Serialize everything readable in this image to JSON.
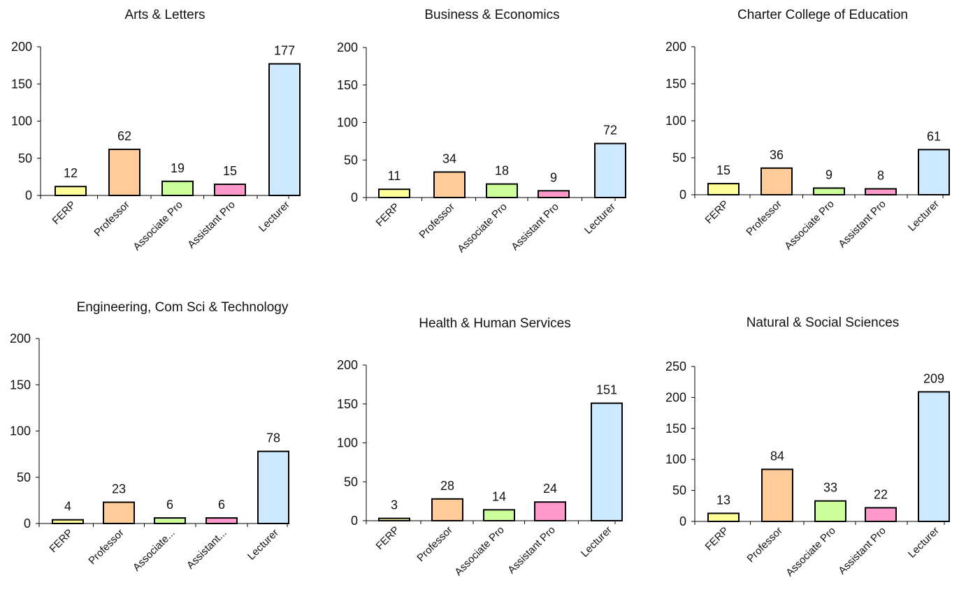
{
  "colors": {
    "FERP": "#ffff99",
    "Professor": "#ffcc99",
    "Associate": "#ccff99",
    "Assistant": "#ff99cc",
    "Lecturer": "#cce9ff",
    "stroke": "#000000"
  },
  "chart_data": [
    {
      "type": "bar",
      "title": "Arts & Letters",
      "categories": [
        "FERP",
        "Professor",
        "Associate Pro",
        "Assistant Pro",
        "Lecturer"
      ],
      "values": [
        12,
        62,
        19,
        15,
        177
      ],
      "ylim": [
        0,
        200
      ],
      "yticks": [
        0,
        50,
        100,
        150,
        200
      ],
      "grid": false,
      "legend": "none"
    },
    {
      "type": "bar",
      "title": "Business & Economics",
      "categories": [
        "FERP",
        "Professor",
        "Associate Pro",
        "Assistant Pro",
        "Lecturer"
      ],
      "values": [
        11,
        34,
        18,
        9,
        72
      ],
      "ylim": [
        0,
        200
      ],
      "yticks": [
        0,
        50,
        100,
        150,
        200
      ],
      "grid": false,
      "legend": "none"
    },
    {
      "type": "bar",
      "title": "Charter College of Education",
      "categories": [
        "FERP",
        "Professor",
        "Associate Pro",
        "Assistant Pro",
        "Lecturer"
      ],
      "values": [
        15,
        36,
        9,
        8,
        61
      ],
      "ylim": [
        0,
        200
      ],
      "yticks": [
        0,
        50,
        100,
        150,
        200
      ],
      "grid": false,
      "legend": "none"
    },
    {
      "type": "bar",
      "title": "Engineering, Com Sci & Technology",
      "categories": [
        "FERP",
        "Professor",
        "Associate...",
        "Assistant...",
        "Lecturer"
      ],
      "values": [
        4,
        23,
        6,
        6,
        78
      ],
      "ylim": [
        0,
        200
      ],
      "yticks": [
        0,
        50,
        100,
        150,
        200
      ],
      "grid": false,
      "legend": "none"
    },
    {
      "type": "bar",
      "title": "Health & Human Services",
      "categories": [
        "FERP",
        "Professor",
        "Associate Pro",
        "Assistant Pro",
        "Lecturer"
      ],
      "values": [
        3,
        28,
        14,
        24,
        151
      ],
      "ylim": [
        0,
        200
      ],
      "yticks": [
        0,
        50,
        100,
        150,
        200
      ],
      "grid": false,
      "legend": "none"
    },
    {
      "type": "bar",
      "title": "Natural & Social Sciences",
      "categories": [
        "FERP",
        "Professor",
        "Associate Pro",
        "Assistant Pro",
        "Lecturer"
      ],
      "values": [
        13,
        84,
        33,
        22,
        209
      ],
      "ylim": [
        0,
        250
      ],
      "yticks": [
        0,
        50,
        100,
        150,
        200,
        250
      ],
      "grid": false,
      "legend": "none"
    }
  ]
}
